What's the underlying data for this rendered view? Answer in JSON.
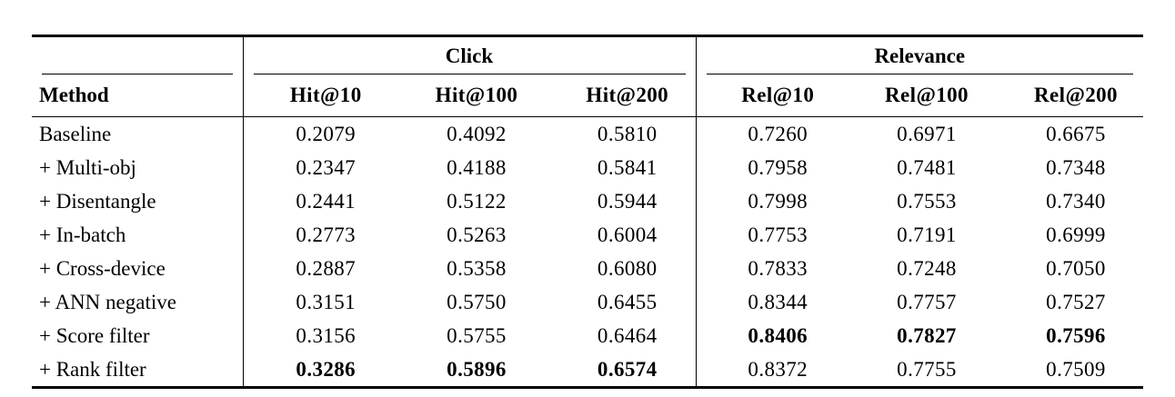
{
  "colors": {
    "background": "#ffffff",
    "text": "#000000",
    "rule": "#000000"
  },
  "table": {
    "method_header": "Method",
    "groups": [
      {
        "label": "Click",
        "columns": [
          "Hit@10",
          "Hit@100",
          "Hit@200"
        ]
      },
      {
        "label": "Relevance",
        "columns": [
          "Rel@10",
          "Rel@100",
          "Rel@200"
        ]
      }
    ],
    "rows": [
      {
        "method": "Baseline",
        "values": [
          "0.2079",
          "0.4092",
          "0.5810",
          "0.7260",
          "0.6971",
          "0.6675"
        ],
        "bold_indices": []
      },
      {
        "method": "+ Multi-obj",
        "values": [
          "0.2347",
          "0.4188",
          "0.5841",
          "0.7958",
          "0.7481",
          "0.7348"
        ],
        "bold_indices": []
      },
      {
        "method": "+ Disentangle",
        "values": [
          "0.2441",
          "0.5122",
          "0.5944",
          "0.7998",
          "0.7553",
          "0.7340"
        ],
        "bold_indices": []
      },
      {
        "method": "+ In-batch",
        "values": [
          "0.2773",
          "0.5263",
          "0.6004",
          "0.7753",
          "0.7191",
          "0.6999"
        ],
        "bold_indices": []
      },
      {
        "method": "+ Cross-device",
        "values": [
          "0.2887",
          "0.5358",
          "0.6080",
          "0.7833",
          "0.7248",
          "0.7050"
        ],
        "bold_indices": []
      },
      {
        "method": "+ ANN negative",
        "values": [
          "0.3151",
          "0.5750",
          "0.6455",
          "0.8344",
          "0.7757",
          "0.7527"
        ],
        "bold_indices": []
      },
      {
        "method": "+ Score filter",
        "values": [
          "0.3156",
          "0.5755",
          "0.6464",
          "0.8406",
          "0.7827",
          "0.7596"
        ],
        "bold_indices": [
          3,
          4,
          5
        ]
      },
      {
        "method": "+ Rank filter",
        "values": [
          "0.3286",
          "0.5896",
          "0.6574",
          "0.8372",
          "0.7755",
          "0.7509"
        ],
        "bold_indices": [
          0,
          1,
          2
        ]
      }
    ]
  }
}
